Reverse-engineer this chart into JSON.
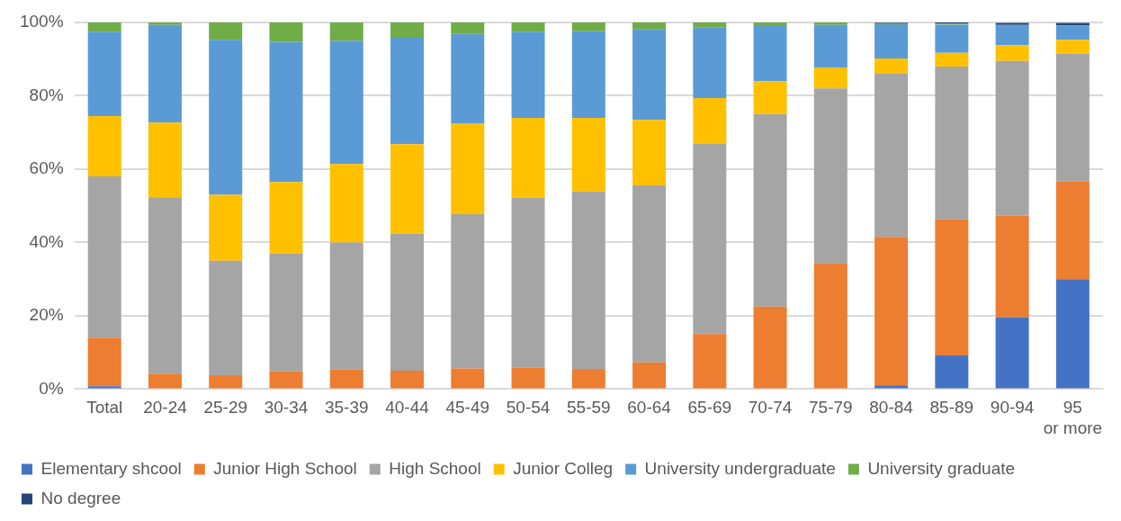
{
  "chart_data": {
    "type": "bar",
    "stacked": true,
    "categories": [
      "Total",
      "20-24",
      "25-29",
      "30-34",
      "35-39",
      "40-44",
      "45-49",
      "50-54",
      "55-59",
      "60-64",
      "65-69",
      "70-74",
      "75-79",
      "80-84",
      "85-89",
      "90-94",
      "95 or more"
    ],
    "series": [
      {
        "name": "Elementary shcool",
        "color": "#4472c4",
        "values": [
          0.8,
          0,
          0,
          0,
          0,
          0,
          0,
          0,
          0,
          0,
          0,
          0,
          0,
          1,
          9.2,
          19.6,
          30
        ]
      },
      {
        "name": "Junior High School",
        "color": "#ed7d31",
        "values": [
          13.2,
          4.2,
          3.8,
          4.8,
          5.3,
          5,
          5.6,
          5.8,
          5.5,
          7.3,
          15,
          22.5,
          34.2,
          40.5,
          37.1,
          27.7,
          26.7
        ]
      },
      {
        "name": "High School",
        "color": "#a5a5a5",
        "values": [
          44,
          48.1,
          31.2,
          32.2,
          34.7,
          37.4,
          42.1,
          46.4,
          48.4,
          48.3,
          52,
          52.5,
          47.8,
          44.5,
          41.7,
          42.2,
          34.8
        ]
      },
      {
        "name": "Junior Colleg",
        "color": "#ffc000",
        "values": [
          16.5,
          20.4,
          18,
          19.5,
          21.4,
          24.4,
          24.8,
          21.8,
          20.1,
          17.8,
          12.4,
          9,
          5.7,
          4.2,
          3.7,
          4.3,
          3.8
        ]
      },
      {
        "name": "University undergraduate",
        "color": "#5b9bd5",
        "values": [
          23,
          26.6,
          42.3,
          38.2,
          33.6,
          29,
          24.4,
          23.5,
          23.6,
          24.7,
          19.2,
          15,
          11.6,
          9.3,
          7.7,
          5.5,
          3.9
        ]
      },
      {
        "name": "University graduate",
        "color": "#70ad47",
        "values": [
          2.5,
          0.7,
          4.7,
          5.3,
          5,
          4.2,
          3.1,
          2.5,
          2.4,
          1.9,
          1.4,
          1,
          0.7,
          0.3,
          0.3,
          null,
          null
        ]
      },
      {
        "name": "No degree",
        "color": "#264478",
        "values": [
          0,
          0,
          0,
          0,
          0,
          0,
          0,
          0,
          0,
          0,
          0,
          0,
          0,
          0.2,
          0.3,
          0.6,
          0.7
        ]
      }
    ],
    "ylim": [
      0,
      100
    ],
    "yticks": [
      {
        "value": 0,
        "label": "0%"
      },
      {
        "value": 20,
        "label": "20%"
      },
      {
        "value": 40,
        "label": "40%"
      },
      {
        "value": 60,
        "label": "60%"
      },
      {
        "value": 80,
        "label": "80%"
      },
      {
        "value": 100,
        "label": "100%"
      }
    ],
    "grid": "y",
    "legend": "bottom"
  }
}
